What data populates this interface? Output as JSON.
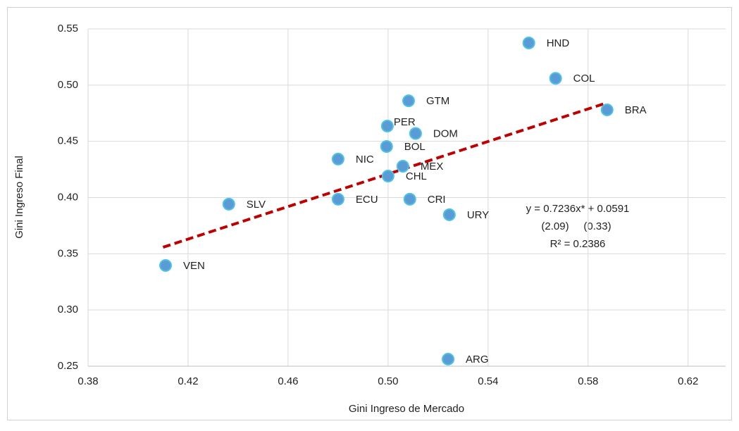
{
  "chart_data": {
    "type": "scatter",
    "x_label": "Gini Ingreso de Mercado",
    "y_label": "Gini Ingreso Final",
    "labels": [
      "HND",
      "COL",
      "BRA",
      "GTM",
      "PER",
      "DOM",
      "BOL",
      "NIC",
      "MEX",
      "CHL",
      "ECU",
      "CRI",
      "SLV",
      "URY",
      "VEN",
      "ARG"
    ],
    "x": [
      0.5563,
      0.567,
      0.5876,
      0.5082,
      0.4997,
      0.511,
      0.4994,
      0.48,
      0.5059,
      0.5,
      0.48,
      0.5087,
      0.4363,
      0.5245,
      0.411,
      0.524
    ],
    "values": [
      0.5375,
      0.506,
      0.478,
      0.486,
      0.4636,
      0.457,
      0.4454,
      0.4342,
      0.4279,
      0.4191,
      0.3985,
      0.3985,
      0.3941,
      0.3847,
      0.3396,
      0.2563
    ],
    "color": "#5b9bd5",
    "trendline": {
      "x": [
        0.41,
        0.5876
      ],
      "values": [
        0.3558,
        0.4843
      ],
      "color": "#c00000"
    },
    "annotations": [
      "y = 0.7236x* + 0.0591",
      "(2.09)     (0.33)",
      "R² = 0.2386"
    ],
    "xlim": [
      0.38,
      0.635
    ],
    "xticks": [
      0.38,
      0.42,
      0.46,
      {
        "value": 0.5,
        "label": "0.50"
      },
      0.54,
      0.58,
      0.62
    ],
    "ylim": [
      0.25,
      0.55
    ],
    "yticks": [
      0.25,
      {
        "value": 0.3,
        "label": "0.30"
      },
      0.35,
      {
        "value": 0.4,
        "label": "0.40"
      },
      0.45,
      {
        "value": 0.5,
        "label": "0.50"
      },
      0.55
    ],
    "grid": true
  }
}
